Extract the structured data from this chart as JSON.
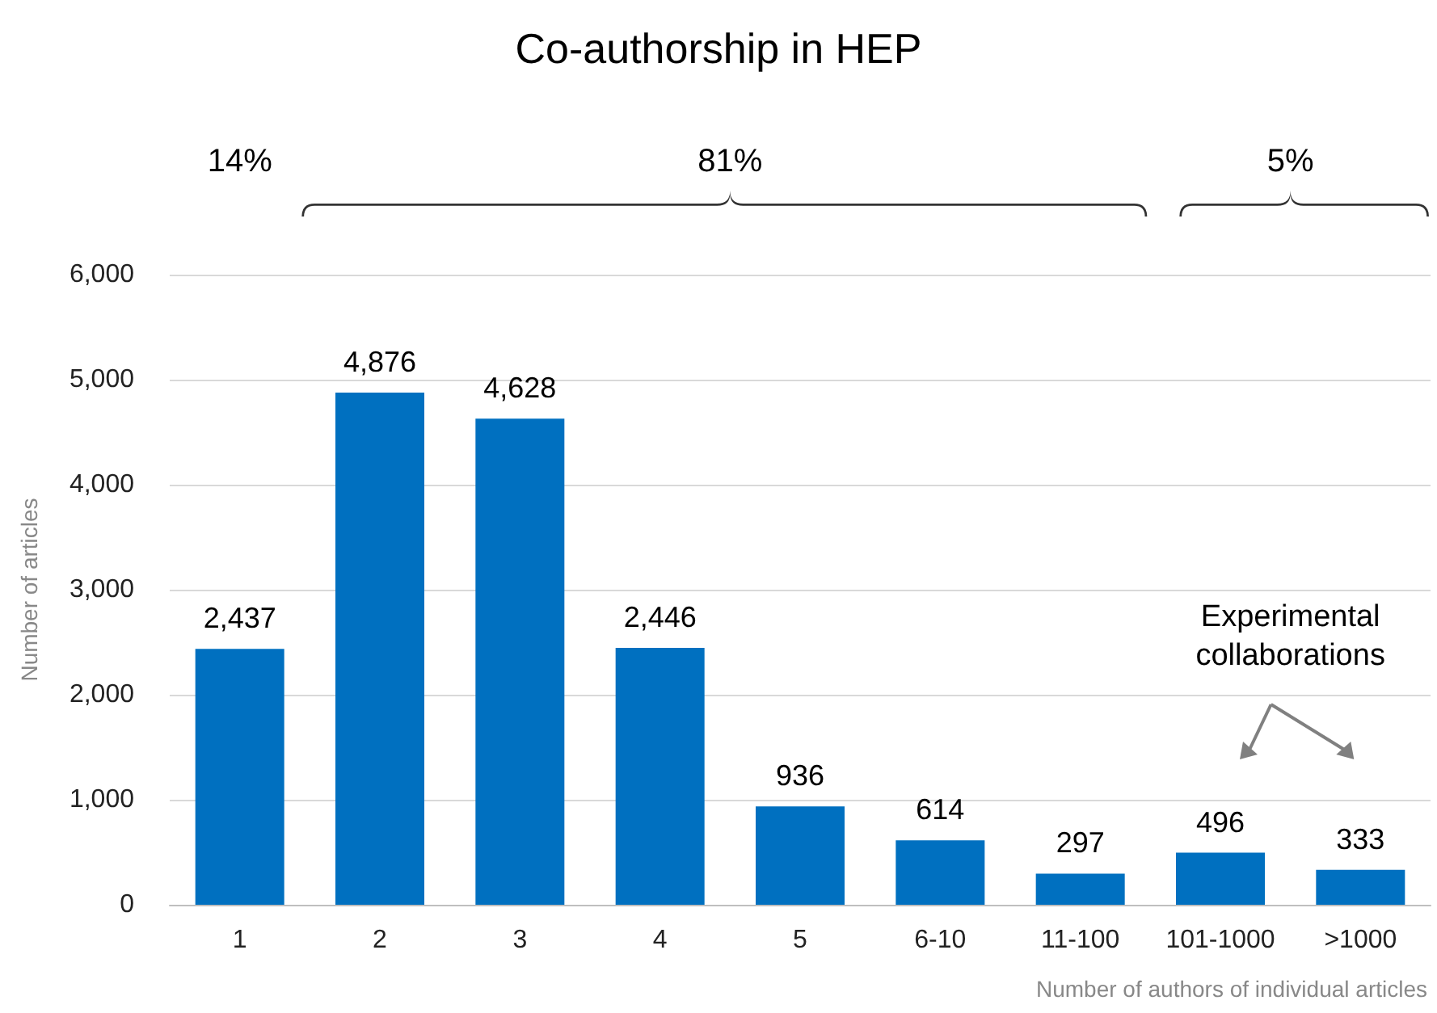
{
  "chart_data": {
    "type": "bar",
    "title": "Co-authorship in HEP",
    "xlabel": "Number of authors of individual articles",
    "ylabel": "Number of articles",
    "categories": [
      "1",
      "2",
      "3",
      "4",
      "5",
      "6-10",
      "11-100",
      "101-1000",
      ">1000"
    ],
    "values": [
      2437,
      4876,
      4628,
      2446,
      936,
      614,
      297,
      496,
      333
    ],
    "value_labels": [
      "2,437",
      "4,876",
      "4,628",
      "2,446",
      "936",
      "614",
      "297",
      "496",
      "333"
    ],
    "color": "#0070c0",
    "ylim": [
      0,
      6000
    ],
    "yticks": [
      0,
      {
        "value": 1000,
        "label": "1,000"
      },
      {
        "value": 2000,
        "label": "2,000"
      },
      {
        "value": 3000,
        "label": "3,000"
      },
      {
        "value": 4000,
        "label": "4,000"
      },
      {
        "value": 5000,
        "label": "5,000"
      },
      {
        "value": 6000,
        "label": "6,000"
      }
    ],
    "grid": "y",
    "annotations": [
      "14%",
      "81%",
      "5%",
      "Experimental\ncollaborations"
    ]
  }
}
